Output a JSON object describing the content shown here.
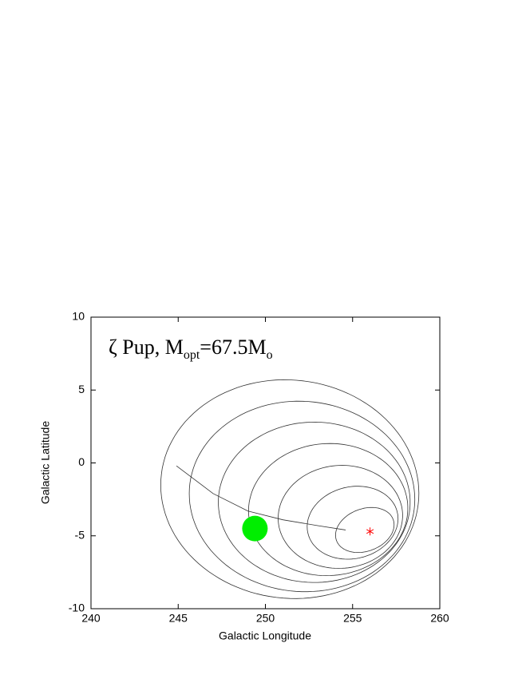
{
  "chart_data": {
    "type": "scatter",
    "title": {
      "prefix": "ζ Pup, M",
      "sub1": "opt",
      "mid": "=67.5M",
      "sub2": "o"
    },
    "x_label": "Galactic Longitude",
    "y_label": "Galactic Latitude",
    "xlim": [
      240,
      260
    ],
    "ylim": [
      -10,
      10
    ],
    "xticks": [
      240,
      245,
      250,
      255,
      260
    ],
    "yticks": [
      -10,
      -5,
      0,
      5,
      10
    ],
    "ellipses": [
      {
        "cx": 251.4,
        "cy": -1.8,
        "rx": 7.3,
        "ry": 7.6,
        "angle": 35
      },
      {
        "cx": 252.1,
        "cy": -2.3,
        "rx": 6.4,
        "ry": 6.6,
        "angle": 35
      },
      {
        "cx": 252.8,
        "cy": -2.7,
        "rx": 5.5,
        "ry": 5.5,
        "angle": 35
      },
      {
        "cx": 253.6,
        "cy": -3.2,
        "rx": 4.6,
        "ry": 4.5,
        "angle": 35
      },
      {
        "cx": 254.3,
        "cy": -3.7,
        "rx": 3.6,
        "ry": 3.5,
        "angle": 35
      },
      {
        "cx": 255.0,
        "cy": -4.1,
        "rx": 2.7,
        "ry": 2.4,
        "angle": 35
      },
      {
        "cx": 255.7,
        "cy": -4.6,
        "rx": 1.8,
        "ry": 1.4,
        "angle": 35
      }
    ],
    "curve": {
      "x": [
        244.9,
        247,
        249,
        251,
        253,
        254.6
      ],
      "y": [
        -0.2,
        -2.1,
        -3.3,
        -3.9,
        -4.3,
        -4.6
      ]
    },
    "points": [
      {
        "x": 249.4,
        "y": -4.5,
        "color": "#00ee00",
        "marker": "circle"
      },
      {
        "x": 256.0,
        "y": -4.7,
        "color": "#ff0000",
        "marker": "star"
      }
    ]
  }
}
